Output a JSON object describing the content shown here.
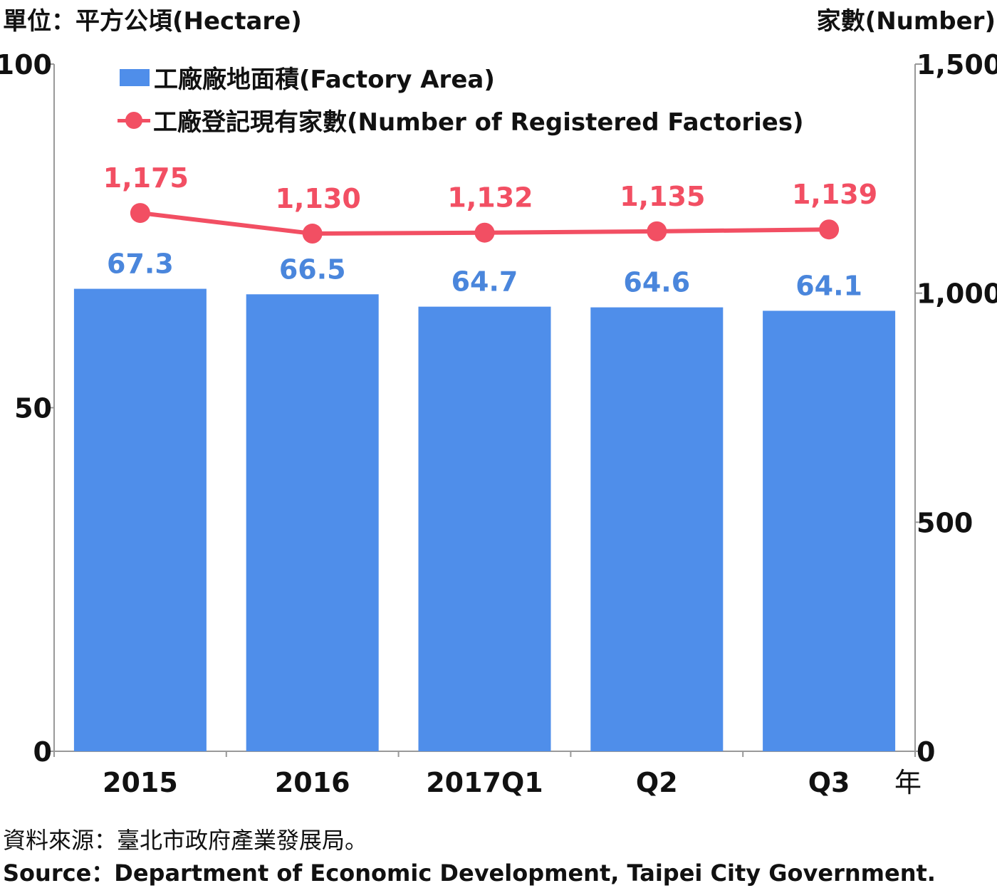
{
  "units": {
    "left": "單位：平方公頃(Hectare)",
    "right": "家數(Number)"
  },
  "legend": {
    "bar_label": "工廠廠地面積(Factory Area)",
    "line_label": "工廠登記現有家數(Number of Registered Factories)"
  },
  "source": {
    "chinese": "資料來源：臺北市政府產業發展局。",
    "english": "Source：Department of Economic Development, Taipei City Government."
  },
  "colors": {
    "bar": "#4f8eea",
    "bar_label": "#4a86dc",
    "line": "#f24f63",
    "axis": "#999999"
  },
  "chart_data": {
    "type": "bar",
    "categories": [
      "2015",
      "2016",
      "2017Q1",
      "Q2",
      "Q3"
    ],
    "x_unit_label": "年",
    "series": [
      {
        "name": "工廠廠地面積(Factory Area)",
        "type": "bar",
        "axis": "left",
        "values": [
          67.3,
          66.5,
          64.7,
          64.6,
          64.1
        ],
        "value_labels": [
          "67.3",
          "66.5",
          "64.7",
          "64.6",
          "64.1"
        ]
      },
      {
        "name": "工廠登記現有家數(Number of Registered Factories)",
        "type": "line",
        "axis": "right",
        "values": [
          1175,
          1130,
          1132,
          1135,
          1139
        ],
        "value_labels": [
          "1,175",
          "1,130",
          "1,132",
          "1,135",
          "1,139"
        ]
      }
    ],
    "y_left": {
      "range": [
        0,
        100
      ],
      "ticks": [
        0,
        50,
        100
      ],
      "tick_labels": [
        "0",
        "50",
        "100"
      ]
    },
    "y_right": {
      "range": [
        0,
        1500
      ],
      "ticks": [
        0,
        500,
        1000,
        1500
      ],
      "tick_labels": [
        "0",
        "500",
        "1,000",
        "1,500"
      ]
    },
    "grid": false,
    "legend_position": "top-left"
  }
}
